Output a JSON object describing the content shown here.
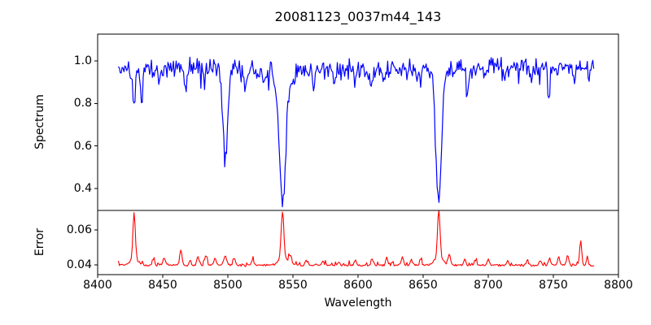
{
  "figure": {
    "background": "#ffffff",
    "axis_color": "#000000",
    "text_color": "#000000"
  },
  "chart_data": [
    {
      "type": "line",
      "id": "spectrum",
      "title": "20081123_0037m44_143",
      "ylabel": "Spectrum",
      "line_color": "#0000ff",
      "xlim": [
        8400,
        8800
      ],
      "ylim": [
        0.297,
        1.126
      ],
      "ytick_values": [
        1.0,
        0.8,
        0.6,
        0.4
      ],
      "ytick_labels": [
        "1.0",
        "0.8",
        "0.6",
        "0.4"
      ],
      "grid": false,
      "legend": null,
      "x_start": 8416,
      "x_end": 8781,
      "n_points": 520,
      "seed": 20081123,
      "continuum": 0.963,
      "continuum_wave_amplitude": 0.008,
      "noise_amplitude": 0.05,
      "absorption_lines": [
        {
          "center": 8428,
          "depth": 0.17,
          "sigma": 1.0
        },
        {
          "center": 8434,
          "depth": 0.15,
          "sigma": 1.0
        },
        {
          "center": 8447,
          "depth": 0.06,
          "sigma": 0.9
        },
        {
          "center": 8468,
          "depth": 0.1,
          "sigma": 1.1
        },
        {
          "center": 8482,
          "depth": 0.06,
          "sigma": 0.9
        },
        {
          "center": 8498,
          "depth": 0.43,
          "sigma": 1.8
        },
        {
          "center": 8513,
          "depth": 0.09,
          "sigma": 1.0
        },
        {
          "center": 8528,
          "depth": 0.1,
          "sigma": 1.1
        },
        {
          "center": 8536,
          "depth": 0.07,
          "sigma": 0.9
        },
        {
          "center": 8542,
          "depth": 0.64,
          "sigma": 2.4
        },
        {
          "center": 8549,
          "depth": 0.08,
          "sigma": 1.0
        },
        {
          "center": 8566,
          "depth": 0.08,
          "sigma": 0.9
        },
        {
          "center": 8582,
          "depth": 0.06,
          "sigma": 0.9
        },
        {
          "center": 8598,
          "depth": 0.07,
          "sigma": 0.9
        },
        {
          "center": 8610,
          "depth": 0.08,
          "sigma": 0.9
        },
        {
          "center": 8620,
          "depth": 0.07,
          "sigma": 0.9
        },
        {
          "center": 8648,
          "depth": 0.07,
          "sigma": 0.9
        },
        {
          "center": 8662,
          "depth": 0.61,
          "sigma": 2.2
        },
        {
          "center": 8684,
          "depth": 0.14,
          "sigma": 1.1
        },
        {
          "center": 8697,
          "depth": 0.06,
          "sigma": 0.9
        },
        {
          "center": 8713,
          "depth": 0.07,
          "sigma": 0.9
        },
        {
          "center": 8733,
          "depth": 0.06,
          "sigma": 0.9
        },
        {
          "center": 8747,
          "depth": 0.12,
          "sigma": 1.0
        },
        {
          "center": 8766,
          "depth": 0.06,
          "sigma": 0.9
        }
      ]
    },
    {
      "type": "line",
      "id": "error",
      "xlabel": "Wavelength",
      "ylabel": "Error",
      "line_color": "#ff0000",
      "xlim": [
        8400,
        8800
      ],
      "ylim": [
        0.0344,
        0.0712
      ],
      "ytick_values": [
        0.06,
        0.04
      ],
      "ytick_labels": [
        "0.06",
        "0.04"
      ],
      "xtick_values": [
        8400,
        8450,
        8500,
        8550,
        8600,
        8650,
        8700,
        8750,
        8800
      ],
      "xtick_labels": [
        "8400",
        "8450",
        "8500",
        "8550",
        "8600",
        "8650",
        "8700",
        "8750",
        "8800"
      ],
      "grid": false,
      "legend": null,
      "x_start": 8416,
      "x_end": 8781,
      "n_points": 520,
      "seed": 37,
      "baseline": 0.0398,
      "noise_amplitude": 0.0008,
      "spikes": [
        {
          "center": 8428,
          "height": 0.026,
          "sigma": 0.9
        },
        {
          "center": 8428,
          "height": 0.004,
          "sigma": 3.0
        },
        {
          "center": 8443,
          "height": 0.004,
          "sigma": 0.8
        },
        {
          "center": 8451,
          "height": 0.0045,
          "sigma": 0.8
        },
        {
          "center": 8464,
          "height": 0.0085,
          "sigma": 0.8
        },
        {
          "center": 8471,
          "height": 0.003,
          "sigma": 0.8
        },
        {
          "center": 8477,
          "height": 0.005,
          "sigma": 0.9
        },
        {
          "center": 8483,
          "height": 0.0055,
          "sigma": 0.9
        },
        {
          "center": 8490,
          "height": 0.004,
          "sigma": 0.8
        },
        {
          "center": 8498,
          "height": 0.005,
          "sigma": 1.2
        },
        {
          "center": 8505,
          "height": 0.004,
          "sigma": 0.8
        },
        {
          "center": 8519,
          "height": 0.003,
          "sigma": 0.8
        },
        {
          "center": 8542,
          "height": 0.026,
          "sigma": 1.0
        },
        {
          "center": 8542,
          "height": 0.005,
          "sigma": 3.0
        },
        {
          "center": 8548,
          "height": 0.005,
          "sigma": 1.0
        },
        {
          "center": 8560,
          "height": 0.0025,
          "sigma": 0.8
        },
        {
          "center": 8573,
          "height": 0.0025,
          "sigma": 0.8
        },
        {
          "center": 8585,
          "height": 0.002,
          "sigma": 0.8
        },
        {
          "center": 8598,
          "height": 0.003,
          "sigma": 0.8
        },
        {
          "center": 8611,
          "height": 0.0035,
          "sigma": 0.8
        },
        {
          "center": 8622,
          "height": 0.004,
          "sigma": 0.8
        },
        {
          "center": 8634,
          "height": 0.0045,
          "sigma": 0.9
        },
        {
          "center": 8641,
          "height": 0.003,
          "sigma": 0.8
        },
        {
          "center": 8648,
          "height": 0.0035,
          "sigma": 0.8
        },
        {
          "center": 8662,
          "height": 0.0275,
          "sigma": 0.9
        },
        {
          "center": 8662,
          "height": 0.005,
          "sigma": 3.0
        },
        {
          "center": 8670,
          "height": 0.006,
          "sigma": 1.0
        },
        {
          "center": 8682,
          "height": 0.004,
          "sigma": 0.8
        },
        {
          "center": 8690,
          "height": 0.003,
          "sigma": 0.8
        },
        {
          "center": 8700,
          "height": 0.0035,
          "sigma": 0.8
        },
        {
          "center": 8715,
          "height": 0.0025,
          "sigma": 0.8
        },
        {
          "center": 8730,
          "height": 0.003,
          "sigma": 0.8
        },
        {
          "center": 8740,
          "height": 0.003,
          "sigma": 0.8
        },
        {
          "center": 8747,
          "height": 0.004,
          "sigma": 0.8
        },
        {
          "center": 8754,
          "height": 0.005,
          "sigma": 0.8
        },
        {
          "center": 8761,
          "height": 0.006,
          "sigma": 0.9
        },
        {
          "center": 8771,
          "height": 0.0145,
          "sigma": 0.8
        },
        {
          "center": 8776,
          "height": 0.004,
          "sigma": 0.8
        }
      ]
    }
  ]
}
